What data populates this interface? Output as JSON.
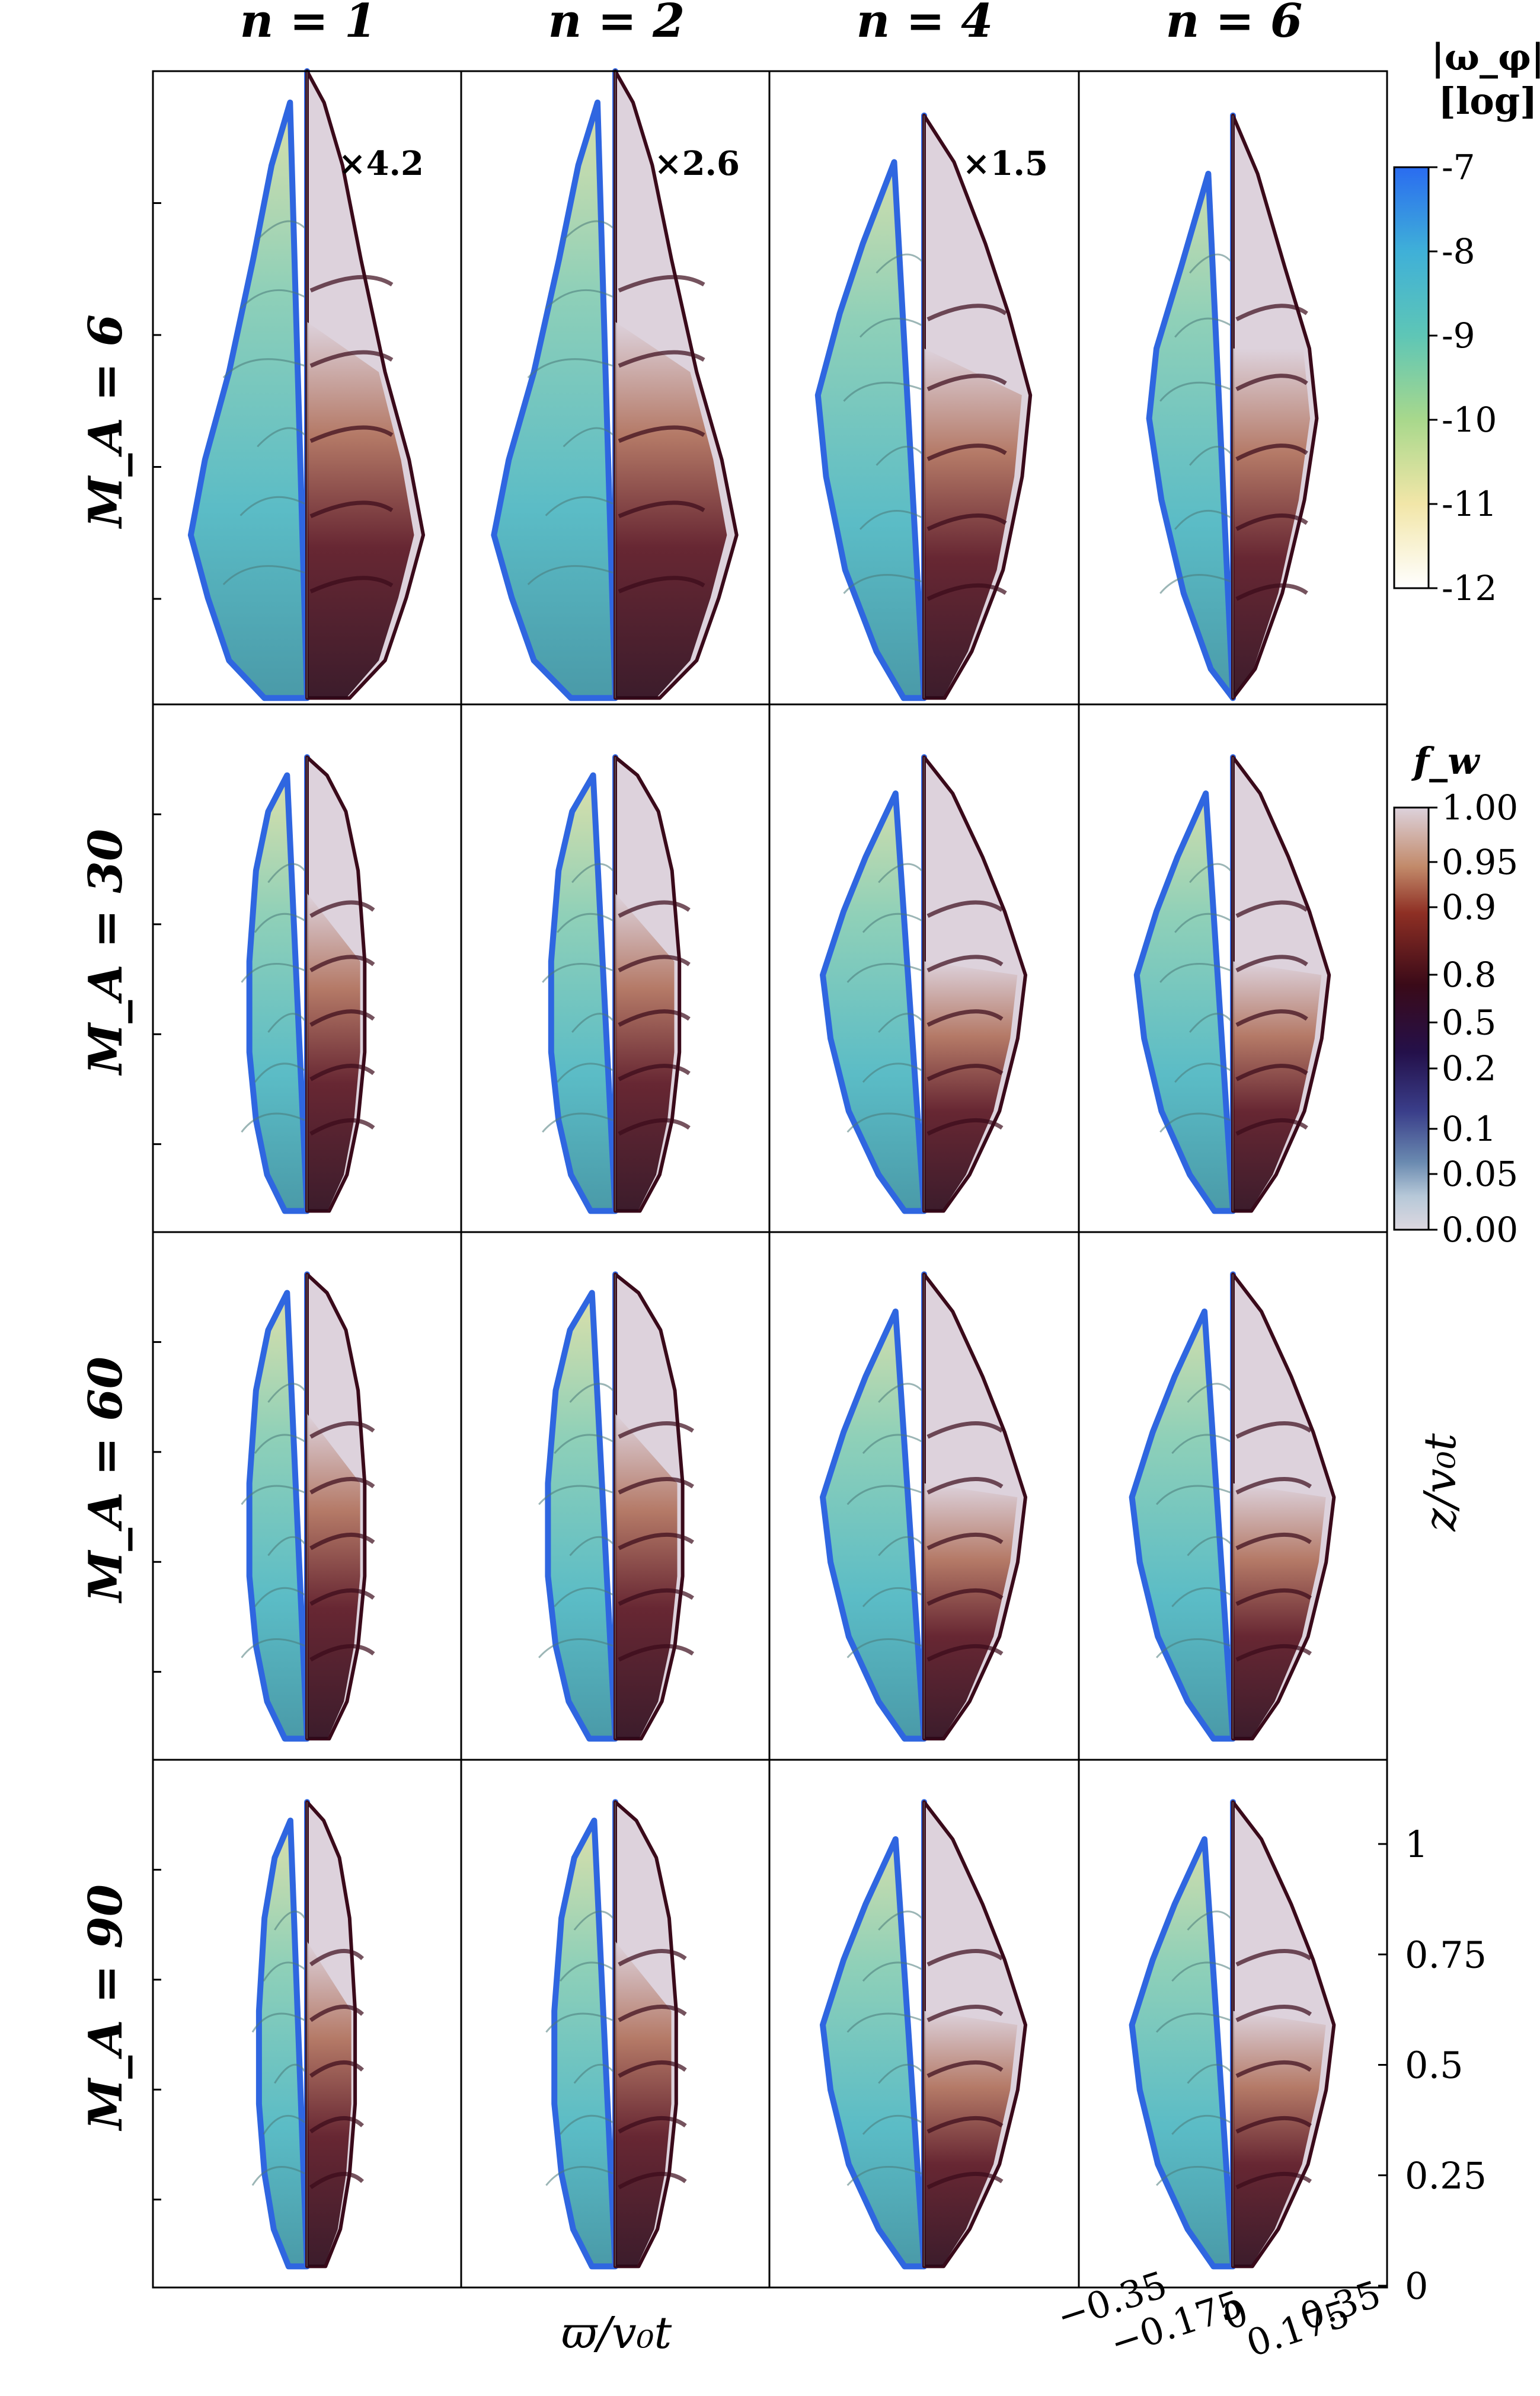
{
  "column_titles": [
    "n = 1",
    "n = 2",
    "n = 4",
    "n = 6"
  ],
  "row_titles": [
    "M_A = 6",
    "M_A = 30",
    "M_A = 60",
    "M_A = 90"
  ],
  "scale_annotations": [
    "×4.2",
    "×2.6",
    "×1.5"
  ],
  "colorbar_vorticity": {
    "title_line1": "|ω_φ|",
    "title_line2": "[log]",
    "ticks": [
      "-7",
      "-8",
      "-9",
      "-10",
      "-11",
      "-12"
    ],
    "colors": [
      "#2a6cf0",
      "#3fb0d8",
      "#5ec6b6",
      "#a8d88c",
      "#f2e6a8",
      "#ffffff"
    ]
  },
  "colorbar_fraction": {
    "title": "f_w",
    "ticks": [
      "1.00",
      "0.95",
      "0.9",
      "0.8",
      "0.5",
      "0.2",
      "0.1",
      "0.05",
      "0.00"
    ],
    "colors": [
      "#ddd2dc",
      "#c28a6a",
      "#8e2f24",
      "#3a0a18",
      "#24104a",
      "#3a3e8a",
      "#6a8ab0",
      "#b6c8d8",
      "#ddd8e0"
    ]
  },
  "x_axis": {
    "label": "ϖ/v₀t",
    "ticks": [
      "−0.35",
      "−0.175",
      "0",
      "0.175",
      "0.35"
    ]
  },
  "y_axis": {
    "label": "z/v₀t",
    "ticks": [
      "1",
      "0.75",
      "0.5",
      "0.25",
      "0"
    ]
  },
  "panel_colors": {
    "vorticity_base": "#5fbfc8",
    "vorticity_edge": "#2f66e0",
    "vorticity_light": "#e8e4b0",
    "fraction_bg": "#ddd2dc",
    "fraction_dark": "#3a0a1a",
    "fraction_mid": "#8e3a2a"
  }
}
